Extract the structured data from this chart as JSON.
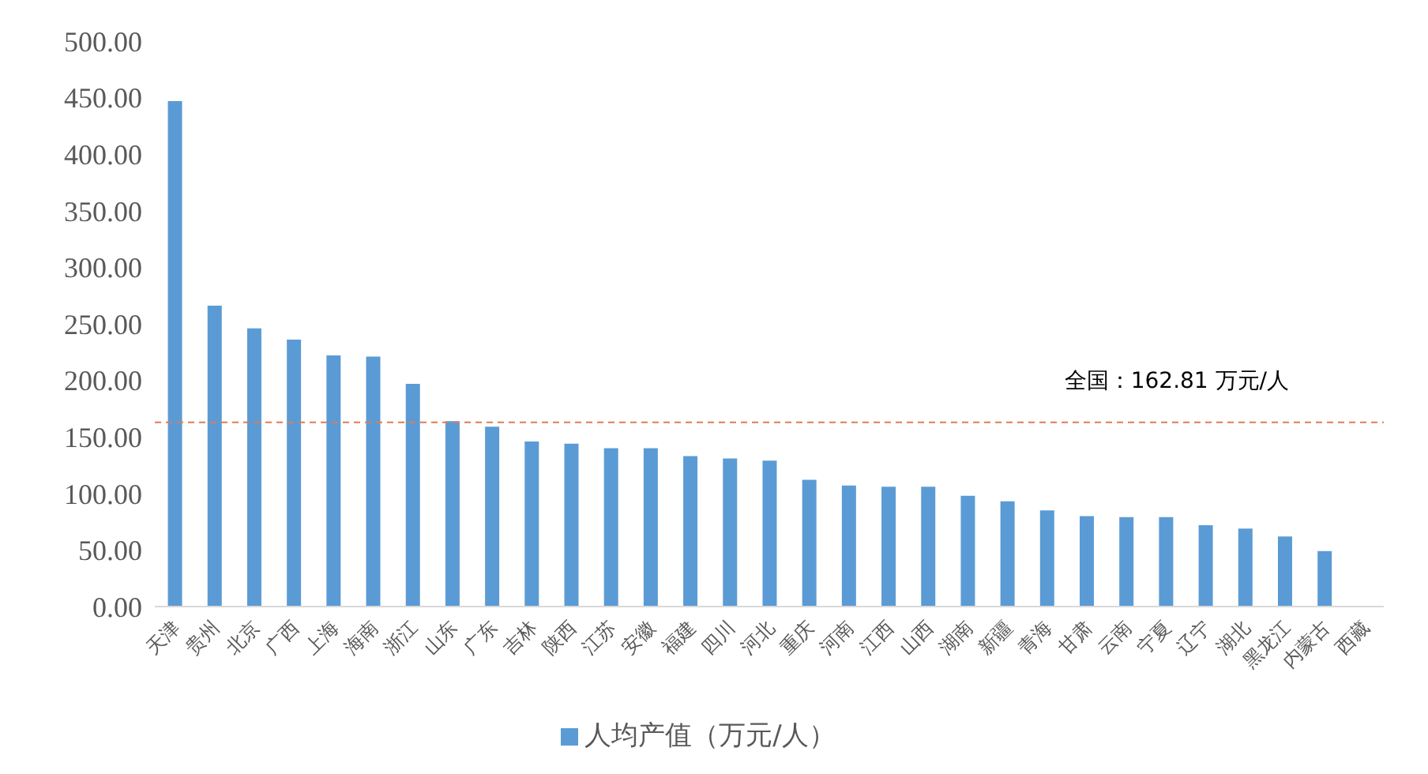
{
  "chart_data": {
    "type": "bar",
    "categories": [
      "天津",
      "贵州",
      "北京",
      "广西",
      "上海",
      "海南",
      "浙江",
      "山东",
      "广东",
      "吉林",
      "陕西",
      "江苏",
      "安徽",
      "福建",
      "四川",
      "河北",
      "重庆",
      "河南",
      "江西",
      "山西",
      "湖南",
      "新疆",
      "青海",
      "甘肃",
      "云南",
      "宁夏",
      "辽宁",
      "湖北",
      "黑龙江",
      "内蒙古",
      "西藏"
    ],
    "series": [
      {
        "name": "人均产值（万元/人）",
        "color": "#5b9bd5",
        "values": [
          447,
          266,
          246,
          236,
          222,
          221,
          197,
          164,
          159,
          146,
          144,
          140,
          140,
          133,
          131,
          129,
          112,
          107,
          106,
          106,
          98,
          93,
          85,
          80,
          79,
          79,
          72,
          69,
          62,
          49,
          null
        ]
      }
    ],
    "ylim": [
      0,
      500
    ],
    "yticks": [
      {
        "value": 0,
        "label": "0.00"
      },
      {
        "value": 50,
        "label": "50.00"
      },
      {
        "value": 100,
        "label": "100.00"
      },
      {
        "value": 150,
        "label": "150.00"
      },
      {
        "value": 200,
        "label": "200.00"
      },
      {
        "value": 250,
        "label": "250.00"
      },
      {
        "value": 300,
        "label": "300.00"
      },
      {
        "value": 350,
        "label": "350.00"
      },
      {
        "value": 400,
        "label": "400.00"
      },
      {
        "value": 450,
        "label": "450.00"
      },
      {
        "value": 500,
        "label": "500.00"
      }
    ],
    "ref_lines": [
      {
        "axis": "y",
        "value": 162.81,
        "label": "全国：162.81 万元/人",
        "color": "#e07b54",
        "line_style": "dashed"
      }
    ],
    "grid": false,
    "legend": "bottom"
  }
}
